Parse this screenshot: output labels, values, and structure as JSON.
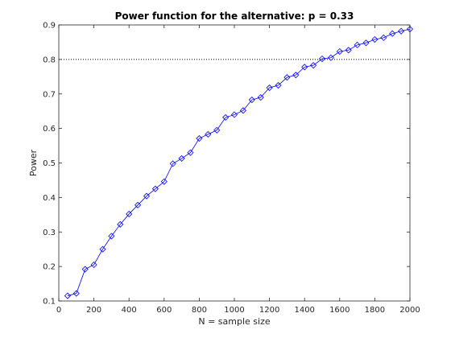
{
  "chart_data": {
    "type": "line",
    "title": "Power function for the alternative: p = 0.33",
    "xlabel": "N = sample size",
    "ylabel": "Power",
    "xlim": [
      0,
      2000
    ],
    "ylim": [
      0.1,
      0.9
    ],
    "xticks": [
      0,
      200,
      400,
      600,
      800,
      1000,
      1200,
      1400,
      1600,
      1800,
      2000
    ],
    "yticks": [
      0.1,
      0.2,
      0.3,
      0.4,
      0.5,
      0.6,
      0.7,
      0.8,
      0.9
    ],
    "grid": false,
    "reference_line": {
      "y": 0.8,
      "style": "dotted",
      "color": "#000000"
    },
    "series": [
      {
        "color": "#0000ff",
        "marker": "diamond",
        "x": [
          50,
          100,
          150,
          200,
          250,
          300,
          350,
          400,
          450,
          500,
          550,
          600,
          650,
          700,
          750,
          800,
          850,
          900,
          950,
          1000,
          1050,
          1100,
          1150,
          1200,
          1250,
          1300,
          1350,
          1400,
          1450,
          1500,
          1550,
          1600,
          1650,
          1700,
          1750,
          1800,
          1850,
          1900,
          1950,
          2000
        ],
        "y": [
          0.115,
          0.122,
          0.192,
          0.205,
          0.25,
          0.288,
          0.322,
          0.352,
          0.378,
          0.404,
          0.425,
          0.446,
          0.498,
          0.513,
          0.53,
          0.571,
          0.583,
          0.595,
          0.632,
          0.64,
          0.652,
          0.683,
          0.69,
          0.718,
          0.725,
          0.748,
          0.755,
          0.778,
          0.783,
          0.802,
          0.805,
          0.823,
          0.827,
          0.842,
          0.848,
          0.858,
          0.863,
          0.875,
          0.882,
          0.888
        ]
      }
    ]
  }
}
